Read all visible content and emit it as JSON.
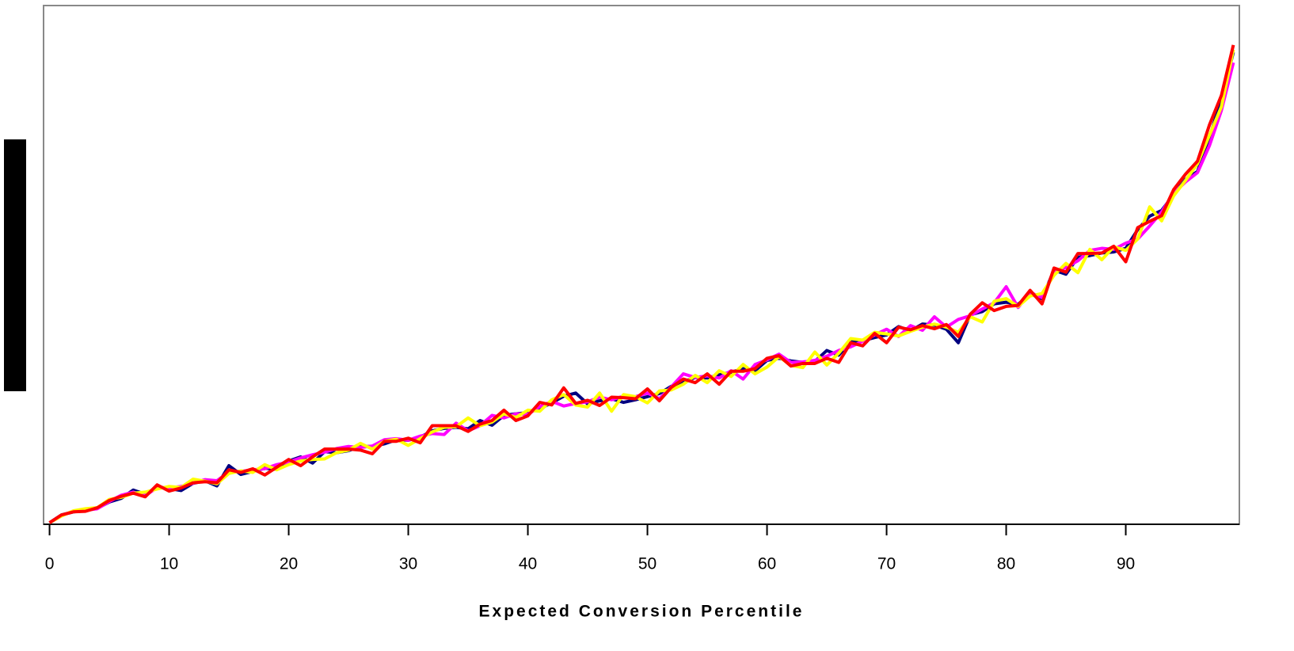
{
  "chart_data": {
    "type": "line",
    "x_label": "Expected Conversion Percentile",
    "x": [
      0,
      1,
      2,
      3,
      4,
      5,
      6,
      7,
      8,
      9,
      10,
      11,
      12,
      13,
      14,
      15,
      16,
      17,
      18,
      19,
      20,
      21,
      22,
      23,
      24,
      25,
      26,
      27,
      28,
      29,
      30,
      31,
      32,
      33,
      34,
      35,
      36,
      37,
      38,
      39,
      40,
      41,
      42,
      43,
      44,
      45,
      46,
      47,
      48,
      49,
      50,
      51,
      52,
      53,
      54,
      55,
      56,
      57,
      58,
      59,
      60,
      61,
      62,
      63,
      64,
      65,
      66,
      67,
      68,
      69,
      70,
      71,
      72,
      73,
      74,
      75,
      76,
      77,
      78,
      79,
      80,
      81,
      82,
      83,
      84,
      85,
      86,
      87,
      88,
      89,
      90,
      91,
      92,
      93,
      94,
      95,
      96,
      97,
      98,
      99
    ],
    "xlim": [
      -0.5,
      99.5
    ],
    "xticks": [
      0,
      10,
      20,
      30,
      40,
      50,
      60,
      70,
      80,
      90
    ],
    "ylim": [
      0,
      100
    ],
    "series": [
      {
        "color": "#000080",
        "values": [
          0.3,
          1.8,
          2.4,
          2.6,
          3.1,
          4.3,
          5.0,
          6.6,
          5.8,
          7.2,
          6.9,
          6.5,
          7.9,
          8.4,
          7.4,
          11.3,
          9.6,
          10.2,
          10.8,
          10.6,
          12.2,
          13.0,
          11.8,
          14.0,
          13.8,
          14.2,
          15.0,
          15.0,
          15.5,
          16.3,
          16.2,
          16.8,
          18.0,
          18.5,
          18.7,
          18.4,
          20.0,
          19.1,
          21.0,
          21.3,
          21.5,
          22.3,
          23.4,
          24.7,
          25.3,
          23.2,
          23.8,
          24.2,
          23.5,
          24.0,
          24.6,
          25.2,
          26.6,
          27.5,
          28.3,
          28.2,
          28.8,
          29.3,
          30.0,
          29.6,
          31.6,
          32.0,
          31.5,
          31.2,
          31.4,
          33.5,
          32.6,
          35.2,
          35.4,
          36.0,
          36.5,
          38.1,
          37.3,
          38.6,
          38.4,
          37.6,
          35.0,
          40.4,
          41.0,
          42.5,
          42.8,
          42.4,
          44.4,
          43.5,
          49.0,
          48.2,
          51.5,
          51.8,
          52.3,
          52.5,
          53.2,
          56.8,
          59.4,
          60.5,
          63.5,
          66.5,
          68.0,
          74.5,
          82.0,
          91.0
        ]
      },
      {
        "color": "#ff00ff",
        "values": [
          0.3,
          1.7,
          2.5,
          2.7,
          3.0,
          4.4,
          5.6,
          6.2,
          5.5,
          7.1,
          7.0,
          7.3,
          7.9,
          8.6,
          8.4,
          10.1,
          10.2,
          10.5,
          10.7,
          11.5,
          12.0,
          12.8,
          13.4,
          13.9,
          14.6,
          15.0,
          14.8,
          15.1,
          16.3,
          16.5,
          16.2,
          17.0,
          17.5,
          17.3,
          19.5,
          18.0,
          19.0,
          21.0,
          20.5,
          21.3,
          21.2,
          22.7,
          23.7,
          22.8,
          23.3,
          23.6,
          24.5,
          24.0,
          24.7,
          24.6,
          25.3,
          24.2,
          26.5,
          29.0,
          28.3,
          28.6,
          28.2,
          29.6,
          28.0,
          30.8,
          31.7,
          32.8,
          31.2,
          31.3,
          31.6,
          32.4,
          33.5,
          34.2,
          35.3,
          36.5,
          37.6,
          36.2,
          38.3,
          37.4,
          40.0,
          38.0,
          39.5,
          40.2,
          41.5,
          42.7,
          45.8,
          41.8,
          44.7,
          43.7,
          48.6,
          49.5,
          50.8,
          52.8,
          53.2,
          53.0,
          54.2,
          55.0,
          57.5,
          60.2,
          63.8,
          66.0,
          67.8,
          73.0,
          79.8,
          89.0
        ]
      },
      {
        "color": "#ffff00",
        "values": [
          0.3,
          1.6,
          2.6,
          3.0,
          3.2,
          4.8,
          5.2,
          6.0,
          6.2,
          6.8,
          7.3,
          7.1,
          8.7,
          8.3,
          7.8,
          9.8,
          10.3,
          10.0,
          11.5,
          10.5,
          11.5,
          12.2,
          12.5,
          12.6,
          13.8,
          14.3,
          15.6,
          14.5,
          16.0,
          16.4,
          15.2,
          16.5,
          17.8,
          18.7,
          18.8,
          20.5,
          19.0,
          19.7,
          21.3,
          20.6,
          22.0,
          21.8,
          24.0,
          25.0,
          23.0,
          22.6,
          25.3,
          21.8,
          25.0,
          24.6,
          23.4,
          25.7,
          25.9,
          27.0,
          28.7,
          27.3,
          29.6,
          28.5,
          30.8,
          29.0,
          30.3,
          32.3,
          30.6,
          30.2,
          33.2,
          30.7,
          33.0,
          35.8,
          35.5,
          37.0,
          36.7,
          36.3,
          37.2,
          38.0,
          38.6,
          38.0,
          37.0,
          40.0,
          39.0,
          43.0,
          43.5,
          42.0,
          44.0,
          44.5,
          48.0,
          50.3,
          48.5,
          53.0,
          51.0,
          53.5,
          52.8,
          55.0,
          61.2,
          58.5,
          63.3,
          66.3,
          69.5,
          75.0,
          80.5,
          91.5
        ]
      },
      {
        "color": "#ff0000",
        "values": [
          0.3,
          1.8,
          2.4,
          2.5,
          3.2,
          4.6,
          5.4,
          6.0,
          5.3,
          7.6,
          6.4,
          7.0,
          8.0,
          8.2,
          8.0,
          10.5,
          10.0,
          10.7,
          9.5,
          11.0,
          12.5,
          11.3,
          13.0,
          14.5,
          14.5,
          14.5,
          14.3,
          13.6,
          16.0,
          16.0,
          16.6,
          15.7,
          19.0,
          19.0,
          19.0,
          17.9,
          19.3,
          20.0,
          22.0,
          20.0,
          20.9,
          23.5,
          23.0,
          26.3,
          23.3,
          23.9,
          22.9,
          24.5,
          24.4,
          24.2,
          26.1,
          23.8,
          26.4,
          28.0,
          27.3,
          29.0,
          27.0,
          29.5,
          29.5,
          30.0,
          32.0,
          32.5,
          30.5,
          31.0,
          31.0,
          32.0,
          31.2,
          35.0,
          34.4,
          36.8,
          35.0,
          38.0,
          37.5,
          38.3,
          37.7,
          38.5,
          36.2,
          40.5,
          42.7,
          41.2,
          42.0,
          42.2,
          45.1,
          42.5,
          49.4,
          48.6,
          52.2,
          52.2,
          52.3,
          53.6,
          50.6,
          57.2,
          58.4,
          59.5,
          64.5,
          67.5,
          70.0,
          77.0,
          82.7,
          92.4
        ]
      }
    ]
  }
}
